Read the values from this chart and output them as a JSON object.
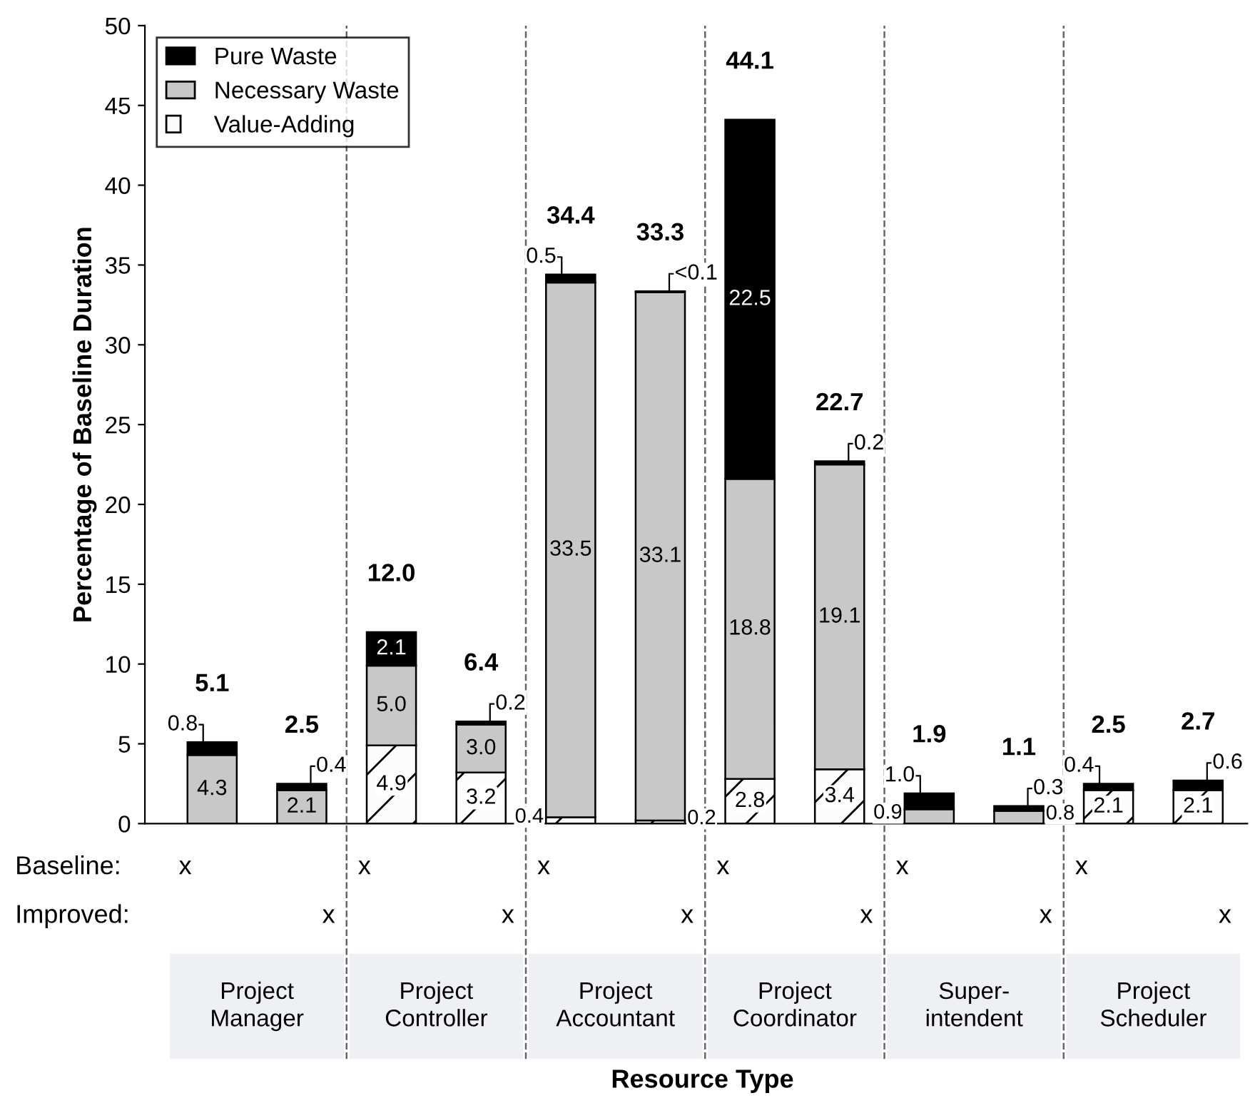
{
  "chart_data": {
    "type": "bar",
    "stacked": true,
    "ylabel": "Percentage of Baseline Duration",
    "categories": [
      null,
      null,
      null,
      null,
      null,
      null,
      null,
      null,
      null,
      null,
      null,
      null
    ],
    "series": [
      {
        "name": "Value-Adding",
        "color": "#fcfcfc",
        "values": [
          0,
          0,
          4.9,
          3.2,
          0.4,
          0.2,
          2.8,
          3.4,
          0,
          0,
          2.1,
          2.1
        ],
        "value_labels": [
          null,
          null,
          "4.9",
          "3.2",
          "0.4",
          "0.2",
          "2.8",
          "3.4",
          null,
          null,
          "2.1",
          "2.1"
        ]
      },
      {
        "name": "Necessary Waste",
        "color": "#c8c8c8",
        "values": [
          4.3,
          2.1,
          5.0,
          3.0,
          33.5,
          33.1,
          18.8,
          19.1,
          0.9,
          0.8,
          0,
          0
        ],
        "value_labels": [
          "4.3",
          "2.1",
          "5.0",
          "3.0",
          "33.5",
          "33.1",
          "18.8",
          "19.1",
          "0.9",
          "0.8",
          null,
          null
        ]
      },
      {
        "name": "Pure Waste",
        "color": "#000000",
        "values": [
          0.8,
          0.4,
          2.1,
          0.2,
          0.5,
          0.05,
          22.5,
          0.2,
          1.0,
          0.3,
          0.4,
          0.6
        ],
        "value_labels": [
          "0.8",
          "0.4",
          "2.1",
          "0.2",
          "0.5",
          "<0.1",
          "22.5",
          "0.2",
          "1.0",
          "0.3",
          "0.4",
          "0.6"
        ]
      }
    ],
    "totals": [
      "5.1",
      "2.5",
      "12.0",
      "6.4",
      "34.4",
      "33.3",
      "44.1",
      "22.7",
      "1.9",
      "1.1",
      "2.5",
      "2.7"
    ],
    "ylim": [
      0,
      50
    ],
    "yticks": [
      0,
      5,
      10,
      15,
      20,
      25,
      30,
      35,
      40,
      45,
      50
    ],
    "annotations": [
      "Baseline:",
      "Improved:",
      "x",
      "x",
      "x",
      "x",
      "x",
      "x",
      "x",
      "x",
      "x",
      "x",
      "x",
      "x",
      "Project\nManager",
      "Project\nController",
      "Project\nAccountant",
      "Project\nCoordinator",
      "Super-\nintendent",
      "Project\nScheduler",
      "Resource Type"
    ],
    "legend": "top left",
    "grid": false
  }
}
